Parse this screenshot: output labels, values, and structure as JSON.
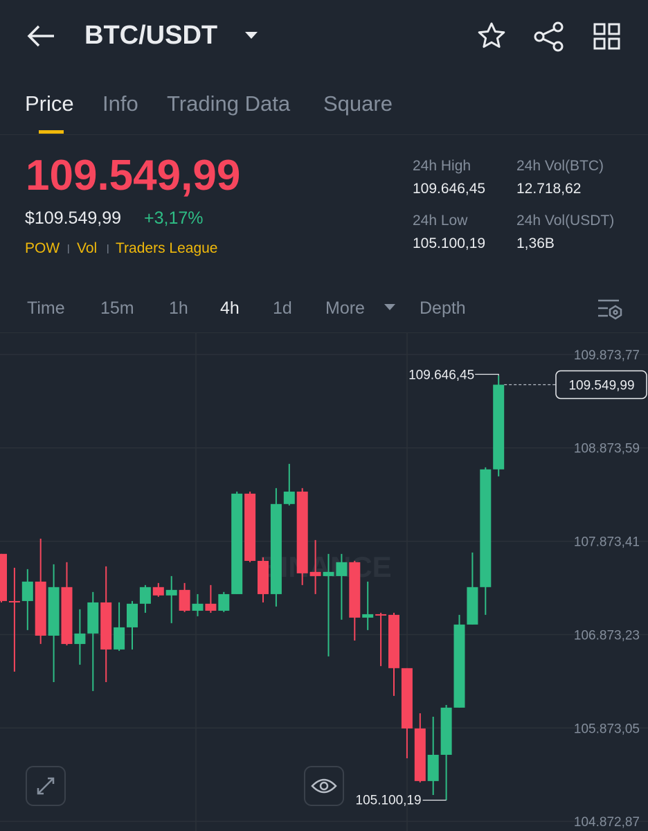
{
  "header": {
    "title": "BTC/USDT"
  },
  "tabs": [
    "Price",
    "Info",
    "Trading Data",
    "Square"
  ],
  "ticker": {
    "price": "109.549,99",
    "usd_price": "$109.549,99",
    "change": "+3,17%",
    "tags": [
      "POW",
      "Vol",
      "Traders League"
    ],
    "stats": [
      {
        "label": "24h High",
        "value": "109.646,45"
      },
      {
        "label": "24h Vol(BTC)",
        "value": "12.718,62"
      },
      {
        "label": "24h Low",
        "value": "105.100,19"
      },
      {
        "label": "24h Vol(USDT)",
        "value": "1,36B"
      }
    ]
  },
  "intervals": [
    "Time",
    "15m",
    "1h",
    "4h",
    "1d",
    "More",
    "Depth"
  ],
  "chart_data": {
    "type": "candlestick",
    "watermark": "BINANCE",
    "up_color": "#2ebd85",
    "down_color": "#f6465d",
    "ylim": [
      104770,
      110110
    ],
    "yticks": [
      {
        "value": 109873.77,
        "label": "109.873,77"
      },
      {
        "value": 108873.59,
        "label": "108.873,59"
      },
      {
        "value": 107873.41,
        "label": "107.873,41"
      },
      {
        "value": 106873.23,
        "label": "106.873,23"
      },
      {
        "value": 105873.05,
        "label": "105.873,05"
      },
      {
        "value": 104872.87,
        "label": "104.872,87"
      }
    ],
    "grid": true,
    "open": [
      107738,
      107233,
      107233,
      107441,
      106862,
      107382,
      106773,
      106885,
      107218,
      106714,
      106951,
      107204,
      107382,
      107293,
      107352,
      107129,
      107204,
      107129,
      107307,
      108383,
      107663,
      107307,
      108272,
      108405,
      107545,
      107500,
      107500,
      107649,
      107055,
      107092,
      107085,
      106514,
      105868,
      105305,
      105586,
      106091,
      106981,
      107382,
      108643
    ],
    "high": [
      107738,
      107589,
      107574,
      107901,
      107626,
      107649,
      107144,
      107330,
      107604,
      107218,
      107233,
      107404,
      107426,
      107500,
      107426,
      107307,
      107404,
      107330,
      108405,
      108405,
      107701,
      108442,
      108702,
      108442,
      107886,
      107738,
      107738,
      107663,
      107441,
      107107,
      107107,
      106514,
      106031,
      105994,
      106120,
      107085,
      107752,
      108665,
      109646.45
    ],
    "low": [
      107218,
      106477,
      106922,
      106773,
      106365,
      106758,
      106551,
      106269,
      106365,
      106699,
      106714,
      107107,
      107278,
      106996,
      107115,
      107070,
      107107,
      107115,
      107307,
      107649,
      107218,
      107174,
      108257,
      107404,
      107307,
      106640,
      107033,
      106810,
      106922,
      106536,
      106217,
      105549,
      105290,
      105156,
      105100.19,
      106091,
      106981,
      107085,
      108568
    ],
    "close": [
      107233,
      107218,
      107441,
      106862,
      107382,
      106773,
      106885,
      107218,
      106714,
      106951,
      107204,
      107382,
      107293,
      107352,
      107129,
      107204,
      107129,
      107307,
      108383,
      107663,
      107307,
      108272,
      108405,
      107530,
      107500,
      107545,
      107649,
      107055,
      107092,
      107085,
      106514,
      105868,
      105305,
      105586,
      106091,
      106981,
      107382,
      108643,
      109549.99
    ],
    "annotations": [
      {
        "value": 109646.45,
        "label": "109.646,45"
      },
      {
        "value": 105100.19,
        "label": "105.100,19"
      },
      {
        "value": 109549.99,
        "label": "109.549,99"
      }
    ]
  }
}
